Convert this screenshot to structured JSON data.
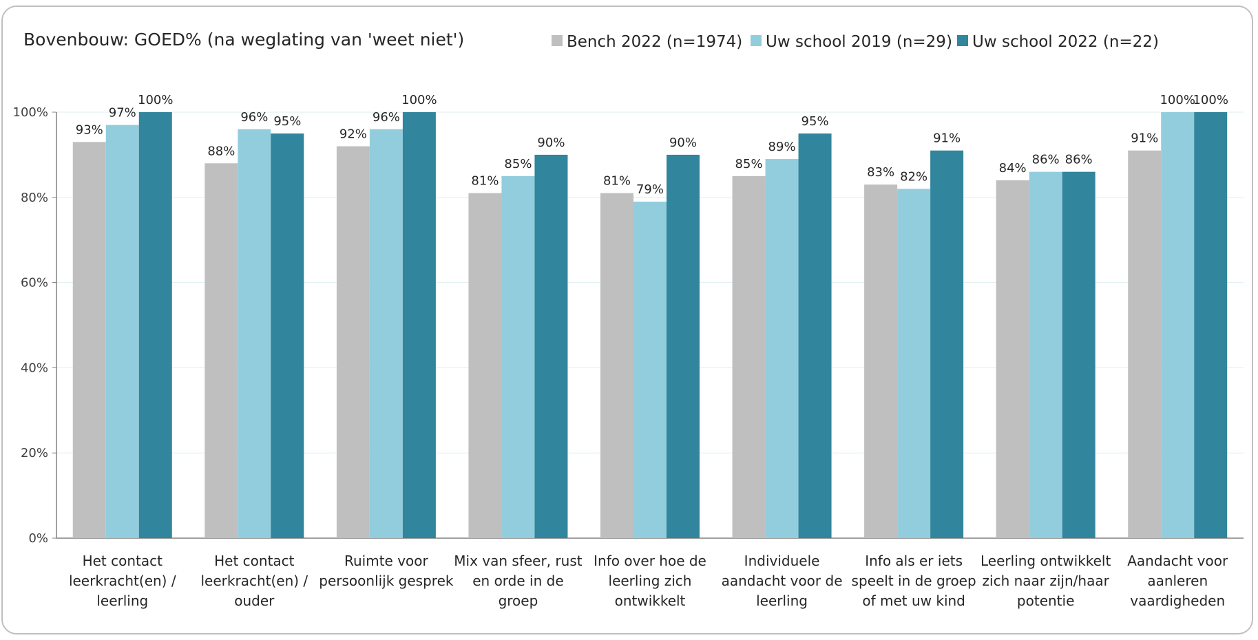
{
  "chart_data": {
    "type": "bar",
    "title": "Bovenbouw: GOED% (na weglating van 'weet niet')",
    "categories": [
      [
        "Het contact",
        "leerkracht(en) /",
        "leerling"
      ],
      [
        "Het contact",
        "leerkracht(en) /",
        "ouder"
      ],
      [
        "Ruimte voor",
        "persoonlijk gesprek"
      ],
      [
        "Mix van sfeer, rust",
        "en orde in de",
        "groep"
      ],
      [
        "Info over hoe de",
        "leerling zich",
        "ontwikkelt"
      ],
      [
        "Individuele",
        "aandacht voor de",
        "leerling"
      ],
      [
        "Info als er iets",
        "speelt in de groep",
        "of met uw kind"
      ],
      [
        "Leerling ontwikkelt",
        "zich naar zijn/haar",
        "potentie"
      ],
      [
        "Aandacht voor",
        "aanleren",
        "vaardigheden"
      ]
    ],
    "series": [
      {
        "name": "Bench 2022 (n=1974)",
        "color": "#bfbfbf",
        "values": [
          93,
          88,
          92,
          81,
          81,
          85,
          83,
          84,
          91
        ]
      },
      {
        "name": "Uw school 2019 (n=29)",
        "color": "#92cddd",
        "values": [
          97,
          96,
          96,
          85,
          79,
          89,
          82,
          86,
          100
        ]
      },
      {
        "name": "Uw school 2022 (n=22)",
        "color": "#31859c",
        "values": [
          100,
          95,
          100,
          90,
          90,
          95,
          91,
          86,
          100
        ]
      }
    ],
    "ylim": [
      0,
      100
    ],
    "yticks": [
      "0%",
      "20%",
      "40%",
      "60%",
      "80%",
      "100%"
    ],
    "value_suffix": "%",
    "legend": "top",
    "grid": true
  }
}
